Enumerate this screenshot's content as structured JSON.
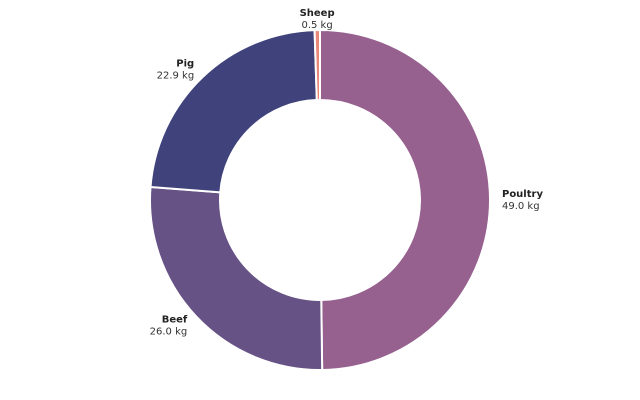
{
  "chart_data": {
    "type": "pie",
    "donut": true,
    "unit": "kg",
    "slices": [
      {
        "name": "Poultry",
        "value": 49.0,
        "value_label": "49.0 kg",
        "color": "#96608f"
      },
      {
        "name": "Beef",
        "value": 26.0,
        "value_label": "26.0 kg",
        "color": "#675285"
      },
      {
        "name": "Pig",
        "value": 22.9,
        "value_label": "22.9 kg",
        "color": "#40437b"
      },
      {
        "name": "Sheep",
        "value": 0.5,
        "value_label": "0.5 kg",
        "color": "#e9887a"
      }
    ],
    "start": "top",
    "direction": "clockwise",
    "legend": "none"
  }
}
